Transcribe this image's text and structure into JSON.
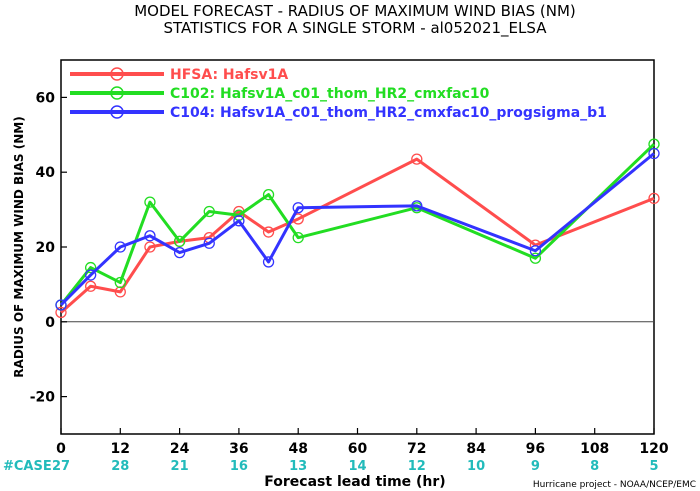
{
  "chart_data": {
    "type": "line",
    "title_line1": "MODEL FORECAST - RADIUS OF MAXIMUM WIND BIAS (NM)",
    "title_line2": "STATISTICS FOR A SINGLE STORM - al052021_ELSA",
    "ylabel": "RADIUS OF MAXIMUM WIND BIAS (NM)",
    "xlabel": "Forecast lead time (hr)",
    "xlim": [
      0,
      120
    ],
    "ylim": [
      -30,
      70
    ],
    "x_ticks": [
      0,
      12,
      24,
      36,
      48,
      60,
      72,
      84,
      96,
      108,
      120
    ],
    "y_ticks": [
      -20,
      0,
      20,
      40,
      60
    ],
    "zero_line": true,
    "legend_position": "top-left",
    "series": [
      {
        "name": "HFSA: Hafsv1A",
        "color": "#ff4d4d",
        "x": [
          0,
          6,
          12,
          18,
          24,
          30,
          36,
          42,
          48,
          72,
          96,
          120
        ],
        "y": [
          2.5,
          9.5,
          8,
          20,
          21.5,
          22.5,
          29.5,
          24,
          27.5,
          43.5,
          20.5,
          33
        ]
      },
      {
        "name": "C102: Hafsv1A_c01_thom_HR2_cmxfac10",
        "color": "#22dd22",
        "x": [
          0,
          6,
          12,
          18,
          24,
          30,
          36,
          42,
          48,
          72,
          96,
          120
        ],
        "y": [
          4.5,
          14.5,
          10.5,
          32,
          21.5,
          29.5,
          28.5,
          34,
          22.5,
          30.5,
          17,
          47.5
        ]
      },
      {
        "name": "C104: Hafsv1A_c01_thom_HR2_cmxfac10_progsigma_b1",
        "color": "#3333ff",
        "x": [
          0,
          6,
          12,
          18,
          24,
          30,
          36,
          42,
          48,
          72,
          96,
          120
        ],
        "y": [
          4.5,
          12.5,
          20,
          23,
          18.5,
          21,
          27,
          16,
          30.5,
          31,
          19,
          45
        ]
      }
    ],
    "case_label": "#CASE",
    "case_color": "#22bbbb",
    "cases": [
      {
        "x": 0,
        "n": "27"
      },
      {
        "x": 12,
        "n": "28"
      },
      {
        "x": 24,
        "n": "21"
      },
      {
        "x": 36,
        "n": "16"
      },
      {
        "x": 48,
        "n": "13"
      },
      {
        "x": 60,
        "n": "14"
      },
      {
        "x": 72,
        "n": "12"
      },
      {
        "x": 84,
        "n": "10"
      },
      {
        "x": 96,
        "n": "9"
      },
      {
        "x": 108,
        "n": "8"
      },
      {
        "x": 120,
        "n": "5"
      }
    ],
    "credit": "Hurricane project - NOAA/NCEP/EMC"
  }
}
